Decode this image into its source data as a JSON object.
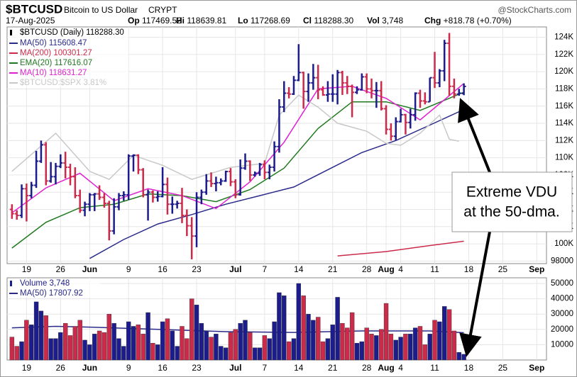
{
  "header": {
    "symbol": "$BTCUSD",
    "name": "Bitcoin to US Dollar",
    "exchange": "CRYPT",
    "source": "@StockCharts.com",
    "date": "17-Aug-2025",
    "stats": [
      {
        "label": "Op",
        "value": "117469.52"
      },
      {
        "label": "Hi",
        "value": "118639.81"
      },
      {
        "label": "Lo",
        "value": "117268.69"
      },
      {
        "label": "Cl",
        "value": "118288.30"
      },
      {
        "label": "Vol",
        "value": "3,748"
      },
      {
        "label": "Chg",
        "value": "+818.78 (+0.70%)"
      }
    ]
  },
  "chart_data": {
    "type": "ohlc",
    "price_legend": "$BTCUSD (Daily) 118288.30",
    "up_color": "#1c1c8c",
    "down_color": "#cc2a4a",
    "xlim": [
      "2025-05-15",
      "2025-09-03"
    ],
    "xticks": [
      {
        "value": "2025-05-19",
        "label": "19"
      },
      {
        "value": "2025-05-26",
        "label": "26"
      },
      {
        "value": "2025-06-01",
        "label": "Jun"
      },
      {
        "value": "2025-06-09",
        "label": "9"
      },
      {
        "value": "2025-06-16",
        "label": "16"
      },
      {
        "value": "2025-06-23",
        "label": "23"
      },
      {
        "value": "2025-07-01",
        "label": "Jul"
      },
      {
        "value": "2025-07-07",
        "label": "7"
      },
      {
        "value": "2025-07-14",
        "label": "14"
      },
      {
        "value": "2025-07-21",
        "label": "21"
      },
      {
        "value": "2025-07-28",
        "label": "28"
      },
      {
        "value": "2025-08-01",
        "label": "Aug"
      },
      {
        "value": "2025-08-04",
        "label": "4"
      },
      {
        "value": "2025-08-11",
        "label": "11"
      },
      {
        "value": "2025-08-18",
        "label": "18"
      },
      {
        "value": "2025-08-25",
        "label": "25"
      },
      {
        "value": "2025-09-01",
        "label": "Sep"
      }
    ],
    "ylim": [
      97700,
      125200
    ],
    "yticks": [
      98000,
      {
        "value": 100000,
        "label": "100K"
      },
      {
        "value": 102000,
        "label": "102K"
      },
      {
        "value": 104000,
        "label": "104K"
      },
      {
        "value": 106000,
        "label": "106K"
      },
      {
        "value": 108000,
        "label": "108K"
      },
      {
        "value": 110000,
        "label": "110K"
      },
      {
        "value": 112000,
        "label": "112K"
      },
      {
        "value": 114000,
        "label": "114K"
      },
      {
        "value": 116000,
        "label": "116K"
      },
      {
        "value": 118000,
        "label": "118K"
      },
      {
        "value": 120000,
        "label": "120K"
      },
      {
        "value": 122000,
        "label": "122K"
      },
      {
        "value": 124000,
        "label": "124K"
      }
    ],
    "grid": true,
    "x": [
      "2025-05-16",
      "2025-05-17",
      "2025-05-18",
      "2025-05-19",
      "2025-05-20",
      "2025-05-21",
      "2025-05-22",
      "2025-05-23",
      "2025-05-24",
      "2025-05-25",
      "2025-05-26",
      "2025-05-27",
      "2025-05-28",
      "2025-05-29",
      "2025-05-30",
      "2025-05-31",
      "2025-06-01",
      "2025-06-02",
      "2025-06-03",
      "2025-06-04",
      "2025-06-05",
      "2025-06-06",
      "2025-06-07",
      "2025-06-08",
      "2025-06-09",
      "2025-06-10",
      "2025-06-11",
      "2025-06-12",
      "2025-06-13",
      "2025-06-14",
      "2025-06-15",
      "2025-06-16",
      "2025-06-17",
      "2025-06-18",
      "2025-06-19",
      "2025-06-20",
      "2025-06-21",
      "2025-06-22",
      "2025-06-23",
      "2025-06-24",
      "2025-06-25",
      "2025-06-26",
      "2025-06-27",
      "2025-06-28",
      "2025-06-29",
      "2025-06-30",
      "2025-07-01",
      "2025-07-02",
      "2025-07-03",
      "2025-07-04",
      "2025-07-05",
      "2025-07-06",
      "2025-07-07",
      "2025-07-08",
      "2025-07-09",
      "2025-07-10",
      "2025-07-11",
      "2025-07-12",
      "2025-07-13",
      "2025-07-14",
      "2025-07-15",
      "2025-07-16",
      "2025-07-17",
      "2025-07-18",
      "2025-07-19",
      "2025-07-20",
      "2025-07-21",
      "2025-07-22",
      "2025-07-23",
      "2025-07-24",
      "2025-07-25",
      "2025-07-26",
      "2025-07-27",
      "2025-07-28",
      "2025-07-29",
      "2025-07-30",
      "2025-07-31",
      "2025-08-01",
      "2025-08-02",
      "2025-08-03",
      "2025-08-04",
      "2025-08-05",
      "2025-08-06",
      "2025-08-07",
      "2025-08-08",
      "2025-08-09",
      "2025-08-10",
      "2025-08-11",
      "2025-08-12",
      "2025-08-13",
      "2025-08-14",
      "2025-08-15",
      "2025-08-16",
      "2025-08-17"
    ],
    "open": [
      104000,
      103500,
      103300,
      106400,
      105600,
      106800,
      109600,
      111500,
      107300,
      107800,
      109000,
      109400,
      108900,
      107800,
      105600,
      103900,
      104600,
      105700,
      105800,
      105400,
      104700,
      101500,
      104300,
      105600,
      105700,
      110200,
      110300,
      108600,
      105700,
      106000,
      105400,
      105500,
      106900,
      104600,
      104600,
      104700,
      103300,
      102100,
      100900,
      105400,
      106000,
      107300,
      107000,
      107100,
      107300,
      108400,
      107200,
      105700,
      108800,
      109600,
      108000,
      108200,
      109200,
      108300,
      108900,
      111300,
      115900,
      117500,
      117400,
      119000,
      119900,
      117700,
      118700,
      119300,
      117900,
      117300,
      117400,
      117400,
      119900,
      118700,
      118300,
      117600,
      117900,
      119400,
      118000,
      117800,
      117800,
      115700,
      113300,
      112500,
      114200,
      115000,
      114100,
      115000,
      117500,
      116600,
      116500,
      119300,
      118700,
      120100,
      123300,
      118300,
      117400,
      117469.52
    ],
    "high": [
      104600,
      103900,
      106900,
      107000,
      107200,
      110800,
      112000,
      111800,
      109500,
      109400,
      110400,
      110700,
      109300,
      108900,
      106300,
      104900,
      105900,
      105900,
      106800,
      105900,
      105000,
      105300,
      105900,
      106100,
      110400,
      110400,
      110400,
      108800,
      106300,
      106200,
      106100,
      108900,
      107700,
      105500,
      105000,
      106500,
      104000,
      103100,
      106000,
      106300,
      108100,
      108300,
      107800,
      107600,
      108500,
      108800,
      107500,
      109800,
      110500,
      109700,
      108400,
      109400,
      109700,
      109200,
      111900,
      116800,
      118900,
      118200,
      119500,
      123200,
      120000,
      119800,
      120900,
      120800,
      118300,
      118900,
      119700,
      120200,
      120100,
      119500,
      118500,
      118300,
      119800,
      119800,
      119200,
      118800,
      118900,
      116100,
      114000,
      114700,
      115700,
      115100,
      115700,
      117600,
      117900,
      117600,
      119300,
      122300,
      120300,
      123700,
      124500,
      119200,
      118000,
      118639.81
    ],
    "low": [
      102900,
      102800,
      103000,
      102600,
      105300,
      106500,
      109400,
      106800,
      107100,
      106900,
      108800,
      107600,
      106800,
      105300,
      103600,
      103200,
      103800,
      103800,
      105100,
      104200,
      100400,
      101100,
      103900,
      105000,
      105100,
      108400,
      108100,
      105400,
      102700,
      104800,
      104900,
      105400,
      103400,
      103500,
      104100,
      102400,
      100900,
      98200,
      99600,
      104600,
      105700,
      106600,
      106100,
      106800,
      107200,
      106700,
      105300,
      105600,
      108600,
      107300,
      107800,
      107900,
      107500,
      107500,
      108400,
      110600,
      115300,
      116900,
      117300,
      118900,
      115700,
      116500,
      117900,
      116800,
      117200,
      116500,
      116500,
      116200,
      117300,
      117400,
      114700,
      117400,
      117800,
      117500,
      116900,
      115800,
      115500,
      112700,
      112000,
      112000,
      114100,
      112700,
      113400,
      114300,
      115800,
      116200,
      116500,
      118100,
      118200,
      118900,
      117200,
      116900,
      117200,
      117268.69
    ],
    "close": [
      103500,
      103300,
      106400,
      105600,
      106800,
      109600,
      111500,
      107300,
      107800,
      109000,
      109400,
      108900,
      107800,
      105600,
      103900,
      104600,
      105700,
      105800,
      105400,
      104700,
      101500,
      104300,
      105600,
      105700,
      110200,
      110300,
      108600,
      105700,
      106000,
      105400,
      105500,
      106900,
      104600,
      104600,
      104700,
      103300,
      102100,
      100900,
      105400,
      106000,
      107300,
      107000,
      107100,
      107300,
      108400,
      107200,
      105700,
      108800,
      109600,
      108000,
      108200,
      109200,
      108300,
      108900,
      111300,
      115900,
      117500,
      117400,
      119000,
      119900,
      117700,
      118700,
      119300,
      117900,
      117300,
      117400,
      117400,
      119900,
      118700,
      118300,
      117600,
      117900,
      119400,
      118000,
      117800,
      117800,
      115700,
      113300,
      112500,
      114200,
      115000,
      114100,
      115000,
      117500,
      116600,
      116500,
      119300,
      118700,
      120100,
      123300,
      118300,
      117400,
      117500,
      118288.3
    ],
    "series": [
      {
        "name": "MA(50)",
        "legend_value": "115608.47",
        "color": "#2a2a8a",
        "x": [
          "2025-06-01",
          "2025-06-08",
          "2025-06-15",
          "2025-06-22",
          "2025-06-29",
          "2025-07-06",
          "2025-07-13",
          "2025-07-20",
          "2025-07-27",
          "2025-08-03",
          "2025-08-10",
          "2025-08-17"
        ],
        "values": [
          98300,
          100500,
          102300,
          103400,
          104600,
          105600,
          106600,
          108600,
          110600,
          112000,
          113800,
          115608.47
        ]
      },
      {
        "name": "MA(200)",
        "legend_value": "100301.27",
        "color": "#cc2a4a",
        "x": [
          "2025-07-22",
          "2025-08-01",
          "2025-08-10",
          "2025-08-17"
        ],
        "values": [
          98600,
          99100,
          99800,
          100301.27
        ]
      },
      {
        "name": "EMA(20)",
        "legend_value": "117616.07",
        "color": "#1e7a1e",
        "x": [
          "2025-05-16",
          "2025-05-23",
          "2025-05-30",
          "2025-06-06",
          "2025-06-13",
          "2025-06-20",
          "2025-06-27",
          "2025-07-04",
          "2025-07-11",
          "2025-07-18",
          "2025-07-25",
          "2025-08-01",
          "2025-08-08",
          "2025-08-17"
        ],
        "values": [
          99500,
          102500,
          104200,
          104600,
          105800,
          105600,
          104900,
          106300,
          108800,
          113400,
          116500,
          116500,
          115500,
          117616.07
        ]
      },
      {
        "name": "MA(10)",
        "legend_value": "118631.27",
        "color": "#e020d0",
        "x": [
          "2025-05-16",
          "2025-05-23",
          "2025-05-30",
          "2025-06-06",
          "2025-06-13",
          "2025-06-20",
          "2025-06-27",
          "2025-07-04",
          "2025-07-11",
          "2025-07-18",
          "2025-07-25",
          "2025-08-01",
          "2025-08-08",
          "2025-08-17"
        ],
        "values": [
          103600,
          106500,
          108200,
          105000,
          106400,
          105600,
          104100,
          107200,
          111800,
          118000,
          118300,
          116900,
          114400,
          118631.27
        ]
      },
      {
        "name": "$BTCUSD:$SPX",
        "legend_value": "3.81%",
        "color": "#c8c8c8",
        "axis": "y3",
        "x": [
          "2025-05-16",
          "2025-05-25",
          "2025-06-01",
          "2025-06-05",
          "2025-06-10",
          "2025-06-16",
          "2025-06-22",
          "2025-06-30",
          "2025-07-07",
          "2025-07-10",
          "2025-07-14",
          "2025-07-18",
          "2025-07-22",
          "2025-07-28",
          "2025-08-01",
          "2025-08-04",
          "2025-08-08",
          "2025-08-12",
          "2025-08-14",
          "2025-08-16"
        ],
        "values": [
          3.66,
          3.85,
          3.66,
          3.62,
          3.74,
          3.69,
          3.62,
          3.68,
          3.7,
          3.94,
          4.04,
          3.98,
          3.9,
          3.86,
          3.8,
          3.79,
          3.85,
          3.94,
          3.82,
          3.81
        ]
      }
    ],
    "y3lim": [
      3.2,
      4.38
    ],
    "volume": {
      "legend": "Volume 3,748",
      "ylim": [
        0,
        53700
      ],
      "yticks": [
        10000,
        20000,
        30000,
        40000,
        50000
      ],
      "values": [
        15000,
        9000,
        12000,
        26000,
        23000,
        38000,
        32000,
        29000,
        14000,
        14000,
        18000,
        24000,
        16000,
        22000,
        26000,
        13000,
        10000,
        17000,
        19000,
        18000,
        30000,
        24000,
        14000,
        9000,
        25000,
        22000,
        23000,
        17000,
        31000,
        11000,
        10000,
        25000,
        27000,
        19000,
        9000,
        22000,
        14000,
        40000,
        36000,
        24000,
        19000,
        15000,
        17000,
        9000,
        8000,
        18000,
        20000,
        24000,
        26000,
        18000,
        8000,
        8000,
        16000,
        14000,
        25000,
        44000,
        42000,
        12000,
        14000,
        50000,
        42000,
        30000,
        26000,
        28000,
        12000,
        14000,
        23000,
        41000,
        24000,
        21000,
        31000,
        11000,
        12000,
        21000,
        17000,
        16000,
        20000,
        37000,
        17000,
        13000,
        15000,
        17000,
        17000,
        21000,
        22000,
        10000,
        17000,
        26000,
        25000,
        35000,
        33000,
        19000,
        5000,
        3748
      ],
      "ma": {
        "name": "MA(50)",
        "legend_value": "17807.92",
        "color": "#2a2a8a",
        "x": [
          "2025-05-16",
          "2025-05-25",
          "2025-06-01",
          "2025-06-15",
          "2025-06-29",
          "2025-07-13",
          "2025-07-27",
          "2025-08-10",
          "2025-08-17"
        ],
        "values": [
          21000,
          22000,
          21500,
          20000,
          18500,
          18000,
          19000,
          19000,
          17807.92
        ]
      }
    },
    "annotation": [
      "Extreme VDU",
      "at the 50-dma."
    ]
  }
}
